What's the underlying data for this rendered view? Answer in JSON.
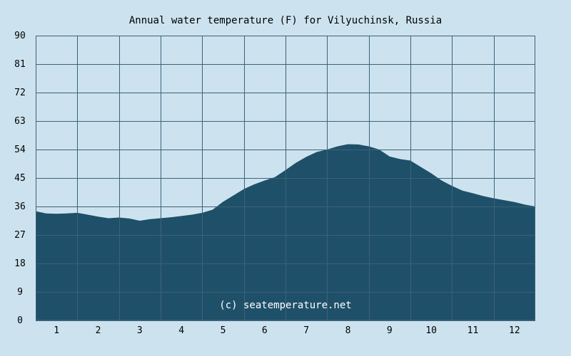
{
  "chart_data": {
    "type": "area",
    "title": "Annual water temperature (F) for Vilyuchinsk, Russia",
    "xlabel": "",
    "ylabel": "",
    "x_ticks": [
      "1",
      "2",
      "3",
      "4",
      "5",
      "6",
      "7",
      "8",
      "9",
      "10",
      "11",
      "12"
    ],
    "y_ticks": [
      "0",
      "9",
      "18",
      "27",
      "36",
      "45",
      "54",
      "63",
      "72",
      "81",
      "90"
    ],
    "ylim": [
      0,
      90
    ],
    "xlim": [
      0.5,
      12.5
    ],
    "grid": true,
    "colors": {
      "background": "#cce3ef",
      "fill": "#1f5069",
      "grid": "#3d6178"
    },
    "watermark": "(c) seatemperature.net",
    "series": [
      {
        "x": [
          0.5,
          0.75,
          1.0,
          1.25,
          1.5,
          1.75,
          2.0,
          2.25,
          2.5,
          2.75,
          3.0,
          3.25,
          3.5,
          3.75,
          4.0,
          4.25,
          4.5,
          4.75,
          5.0,
          5.25,
          5.5,
          5.75,
          6.0,
          6.25,
          6.5,
          6.75,
          7.0,
          7.25,
          7.5,
          7.75,
          8.0,
          8.25,
          8.5,
          8.75,
          9.0,
          9.25,
          9.5,
          9.75,
          10.0,
          10.25,
          10.5,
          10.75,
          11.0,
          11.25,
          11.5,
          11.75,
          12.0,
          12.25,
          12.5
        ],
        "y": [
          34.5,
          33.8,
          33.7,
          33.8,
          34.0,
          33.4,
          32.8,
          32.3,
          32.5,
          32.2,
          31.5,
          32.0,
          32.3,
          32.6,
          33.0,
          33.4,
          34.0,
          35.0,
          37.5,
          39.5,
          41.5,
          43.0,
          44.2,
          45.3,
          47.5,
          49.8,
          51.7,
          53.2,
          54.0,
          55.0,
          55.7,
          55.6,
          55.0,
          54.0,
          51.8,
          51.0,
          50.5,
          48.5,
          46.5,
          44.2,
          42.5,
          41.0,
          40.2,
          39.3,
          38.6,
          38.0,
          37.4,
          36.6,
          36.0
        ]
      }
    ]
  }
}
